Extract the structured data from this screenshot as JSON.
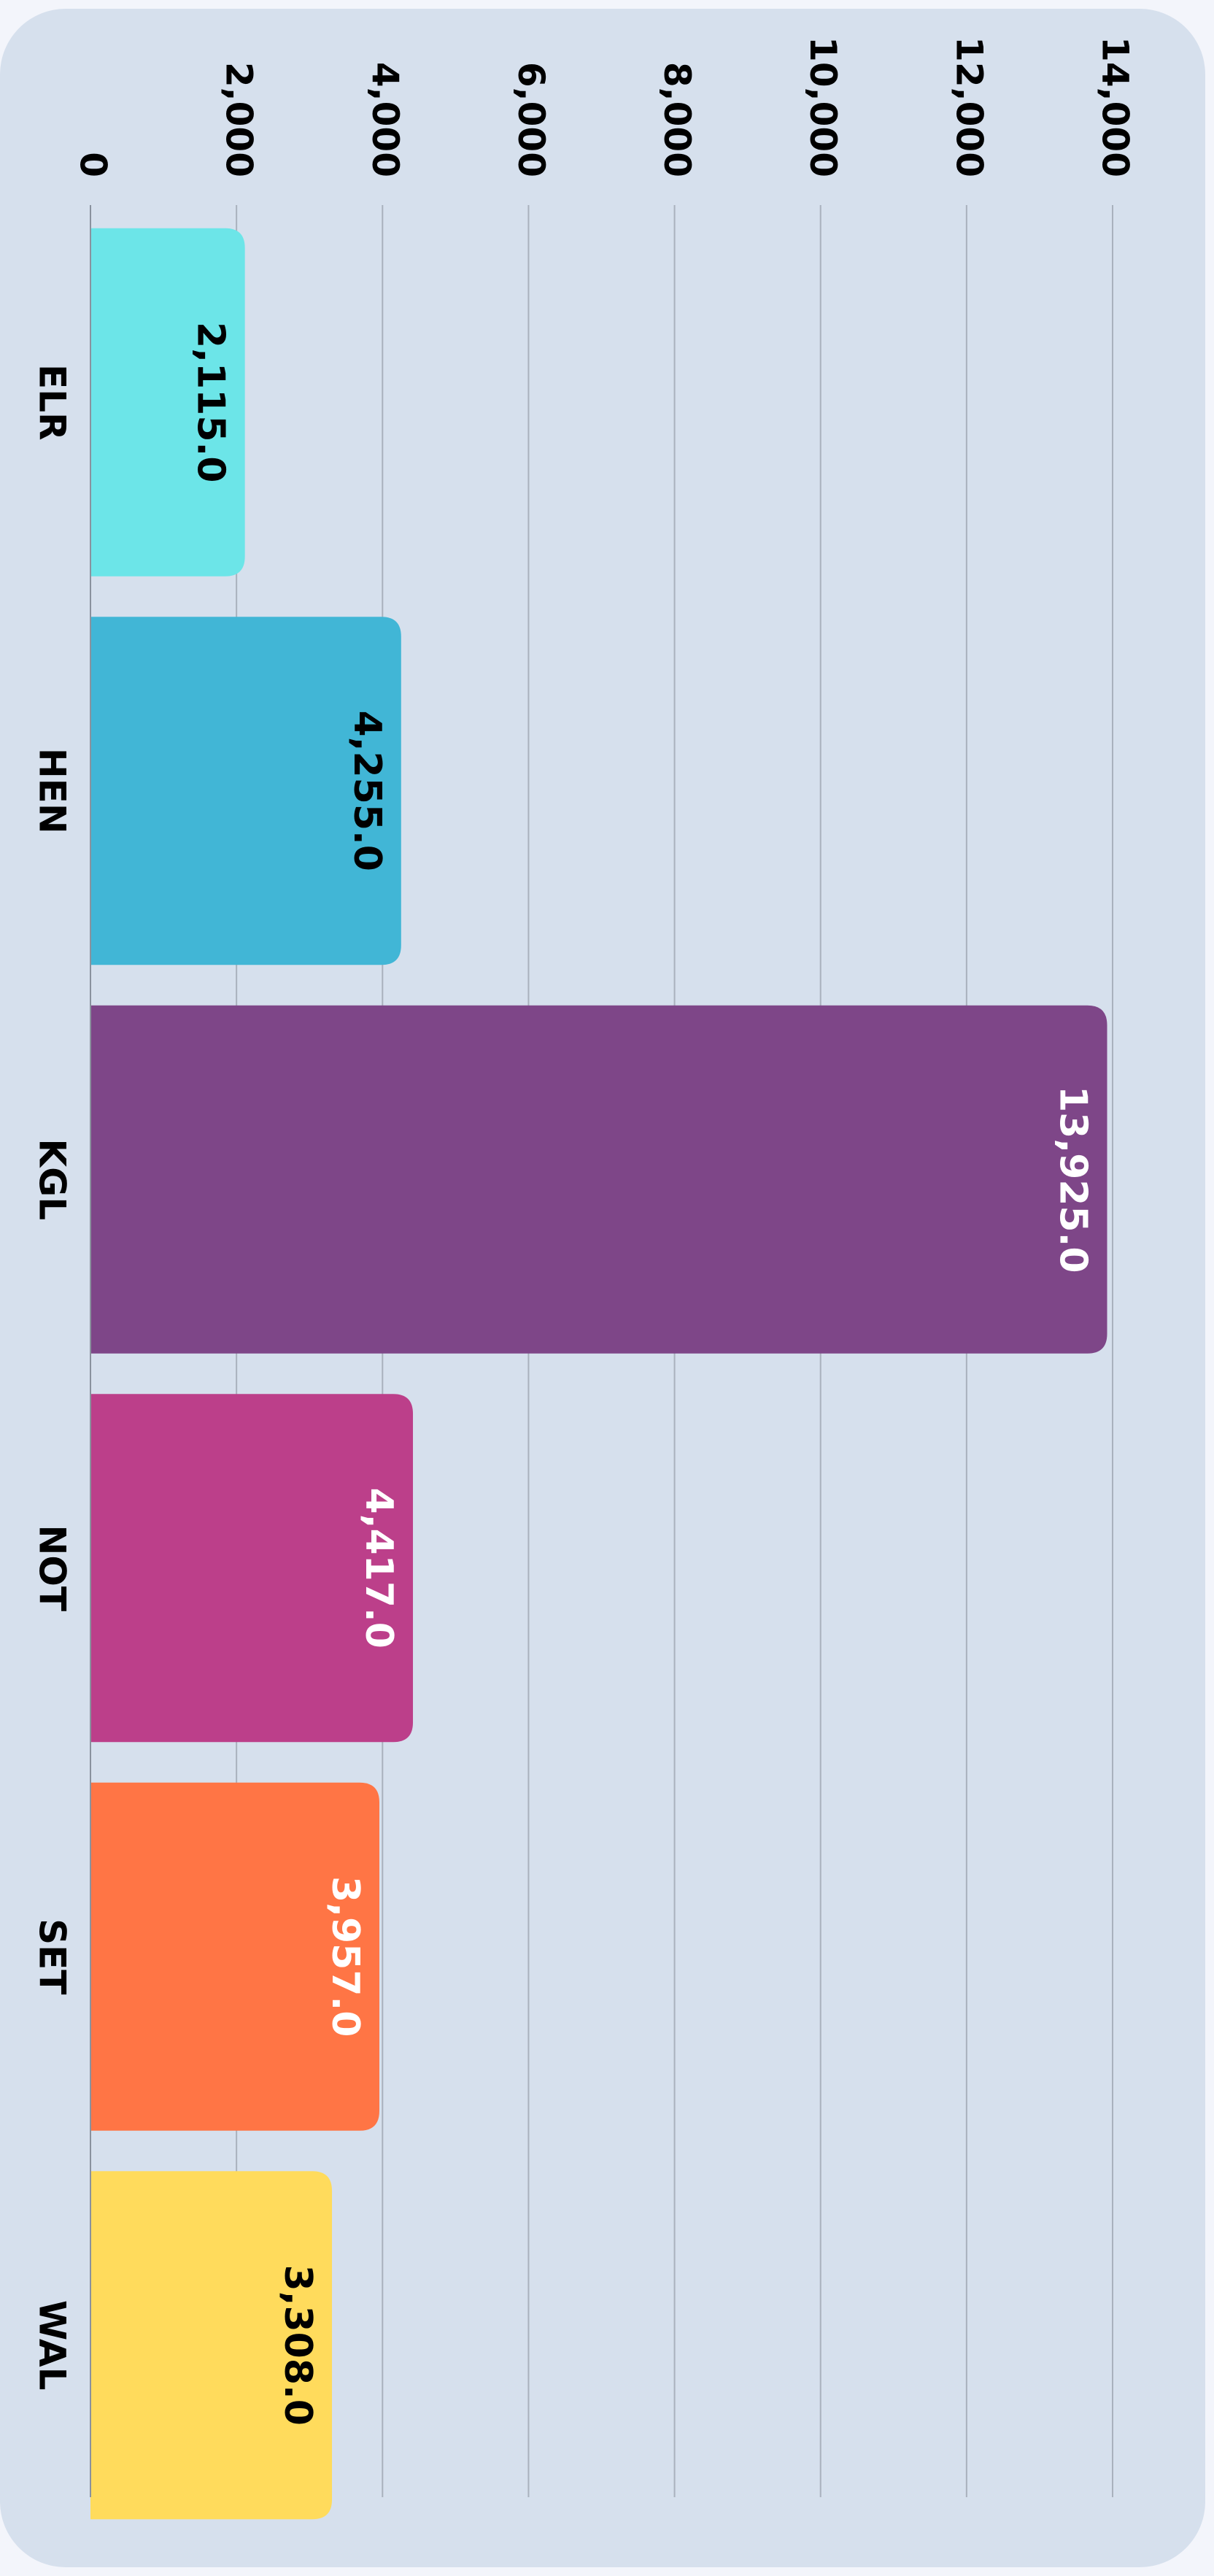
{
  "chart_data": {
    "type": "bar",
    "orientation": "horizontal",
    "categories": [
      "ELR",
      "HEN",
      "KGL",
      "NOT",
      "SET",
      "WAL"
    ],
    "values": [
      2115,
      4255,
      13925,
      4417,
      3957,
      3308
    ],
    "value_labels": [
      "2,115.0",
      "4,255.0",
      "13,925.0",
      "4,417.0",
      "3,957.0",
      "3,308.0"
    ],
    "colors": [
      "#6ce5e8",
      "#41b6d6",
      "#7e4688",
      "#bc3f8a",
      "#ff7545",
      "#ffdb5c"
    ],
    "label_colors": [
      "#000000",
      "#000000",
      "#ffffff",
      "#ffffff",
      "#ffffff",
      "#000000"
    ],
    "xlim": [
      0,
      14000
    ],
    "xticks": [
      0,
      {
        "value": 2000,
        "label": "2,000"
      },
      {
        "value": 4000,
        "label": "4,000"
      },
      {
        "value": 6000,
        "label": "6,000"
      },
      {
        "value": 8000,
        "label": "8,000"
      },
      {
        "value": 10000,
        "label": "10,000"
      },
      {
        "value": 12000,
        "label": "12,000"
      },
      {
        "value": 14000,
        "label": "14,000"
      }
    ],
    "grid": true
  }
}
